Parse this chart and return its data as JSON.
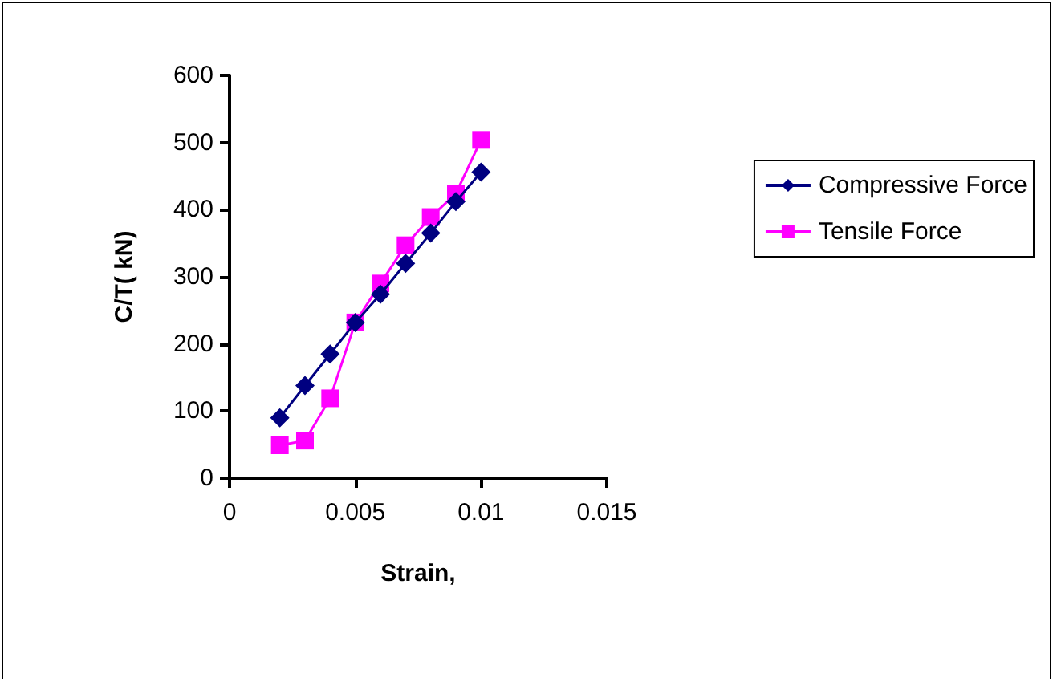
{
  "chart_data": {
    "type": "line",
    "xlabel": "Strain,",
    "ylabel": "C/T( kN)",
    "x": [
      0.002,
      0.003,
      0.004,
      0.005,
      0.006,
      0.007,
      0.008,
      0.009,
      0.01
    ],
    "series": [
      {
        "name": "Compressive Force",
        "color": "#000080",
        "marker": "diamond",
        "values": [
          90,
          138,
          185,
          232,
          274,
          320,
          365,
          412,
          456
        ]
      },
      {
        "name": "Tensile Force",
        "color": "#ff00ff",
        "marker": "square",
        "values": [
          49,
          56,
          119,
          232,
          290,
          347,
          389,
          424,
          504
        ]
      }
    ],
    "xlim": [
      0,
      0.015
    ],
    "xticks": [
      0,
      0.005,
      0.01,
      0.015
    ],
    "ylim": [
      0,
      600
    ],
    "yticks": [
      0,
      100,
      200,
      300,
      400,
      500,
      600
    ],
    "grid": false,
    "legend": "right",
    "line_style": "solid"
  }
}
